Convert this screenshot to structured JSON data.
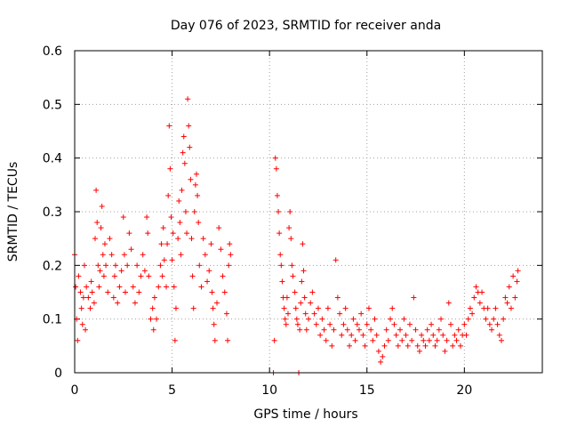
{
  "chart_data": {
    "type": "scatter",
    "title": "Day 076 of 2023, SRMTID for receiver anda",
    "xlabel": "GPS time / hours",
    "ylabel": "SRMTID / TECUs",
    "xlim": [
      0,
      24
    ],
    "ylim": [
      0,
      0.6
    ],
    "xticks": [
      0,
      5,
      10,
      15,
      20
    ],
    "xtick_labels": [
      "0",
      "5",
      "10",
      "15",
      "20"
    ],
    "yticks": [
      0,
      0.1,
      0.2,
      0.3,
      0.4,
      0.5,
      0.6
    ],
    "ytick_labels": [
      "0",
      "0.1",
      "0.2",
      "0.3",
      "0.4",
      "0.5",
      "0.6"
    ],
    "grid": true,
    "marker": "+",
    "color": "#ff0000",
    "series": [
      {
        "name": "SRMTID",
        "points": [
          [
            0.0,
            0.22
          ],
          [
            0.05,
            0.16
          ],
          [
            0.1,
            0.1
          ],
          [
            0.15,
            0.06
          ],
          [
            0.2,
            0.18
          ],
          [
            0.3,
            0.15
          ],
          [
            0.35,
            0.12
          ],
          [
            0.4,
            0.09
          ],
          [
            0.45,
            0.14
          ],
          [
            0.5,
            0.2
          ],
          [
            0.55,
            0.08
          ],
          [
            0.6,
            0.16
          ],
          [
            0.7,
            0.14
          ],
          [
            0.8,
            0.12
          ],
          [
            0.85,
            0.17
          ],
          [
            0.9,
            0.15
          ],
          [
            1.0,
            0.13
          ],
          [
            1.05,
            0.25
          ],
          [
            1.1,
            0.34
          ],
          [
            1.15,
            0.28
          ],
          [
            1.2,
            0.2
          ],
          [
            1.25,
            0.16
          ],
          [
            1.3,
            0.19
          ],
          [
            1.35,
            0.27
          ],
          [
            1.4,
            0.31
          ],
          [
            1.45,
            0.22
          ],
          [
            1.5,
            0.18
          ],
          [
            1.55,
            0.24
          ],
          [
            1.6,
            0.2
          ],
          [
            1.7,
            0.15
          ],
          [
            1.8,
            0.25
          ],
          [
            1.9,
            0.22
          ],
          [
            2.0,
            0.14
          ],
          [
            2.05,
            0.18
          ],
          [
            2.1,
            0.2
          ],
          [
            2.2,
            0.13
          ],
          [
            2.3,
            0.16
          ],
          [
            2.4,
            0.19
          ],
          [
            2.5,
            0.29
          ],
          [
            2.55,
            0.22
          ],
          [
            2.6,
            0.15
          ],
          [
            2.7,
            0.2
          ],
          [
            2.8,
            0.26
          ],
          [
            2.9,
            0.23
          ],
          [
            3.0,
            0.16
          ],
          [
            3.1,
            0.13
          ],
          [
            3.2,
            0.2
          ],
          [
            3.3,
            0.15
          ],
          [
            3.4,
            0.18
          ],
          [
            3.5,
            0.22
          ],
          [
            3.6,
            0.19
          ],
          [
            3.7,
            0.29
          ],
          [
            3.75,
            0.26
          ],
          [
            3.8,
            0.18
          ],
          [
            3.9,
            0.1
          ],
          [
            4.0,
            0.12
          ],
          [
            4.05,
            0.08
          ],
          [
            4.1,
            0.14
          ],
          [
            4.2,
            0.1
          ],
          [
            4.3,
            0.16
          ],
          [
            4.4,
            0.2
          ],
          [
            4.45,
            0.24
          ],
          [
            4.5,
            0.18
          ],
          [
            4.55,
            0.27
          ],
          [
            4.6,
            0.21
          ],
          [
            4.7,
            0.16
          ],
          [
            4.75,
            0.24
          ],
          [
            4.8,
            0.33
          ],
          [
            4.85,
            0.46
          ],
          [
            4.9,
            0.38
          ],
          [
            4.95,
            0.29
          ],
          [
            5.0,
            0.21
          ],
          [
            5.05,
            0.26
          ],
          [
            5.1,
            0.16
          ],
          [
            5.15,
            0.06
          ],
          [
            5.2,
            0.12
          ],
          [
            5.3,
            0.25
          ],
          [
            5.35,
            0.32
          ],
          [
            5.4,
            0.28
          ],
          [
            5.45,
            0.22
          ],
          [
            5.5,
            0.34
          ],
          [
            5.55,
            0.41
          ],
          [
            5.6,
            0.44
          ],
          [
            5.65,
            0.39
          ],
          [
            5.7,
            0.3
          ],
          [
            5.75,
            0.26
          ],
          [
            5.8,
            0.51
          ],
          [
            5.85,
            0.46
          ],
          [
            5.9,
            0.42
          ],
          [
            5.95,
            0.36
          ],
          [
            6.0,
            0.25
          ],
          [
            6.05,
            0.18
          ],
          [
            6.1,
            0.12
          ],
          [
            6.15,
            0.3
          ],
          [
            6.2,
            0.35
          ],
          [
            6.25,
            0.37
          ],
          [
            6.3,
            0.33
          ],
          [
            6.35,
            0.28
          ],
          [
            6.4,
            0.2
          ],
          [
            6.5,
            0.16
          ],
          [
            6.6,
            0.25
          ],
          [
            6.7,
            0.22
          ],
          [
            6.8,
            0.17
          ],
          [
            6.9,
            0.19
          ],
          [
            7.0,
            0.24
          ],
          [
            7.05,
            0.15
          ],
          [
            7.1,
            0.12
          ],
          [
            7.15,
            0.09
          ],
          [
            7.2,
            0.06
          ],
          [
            7.3,
            0.13
          ],
          [
            7.4,
            0.27
          ],
          [
            7.5,
            0.23
          ],
          [
            7.6,
            0.18
          ],
          [
            7.7,
            0.15
          ],
          [
            7.8,
            0.11
          ],
          [
            7.85,
            0.06
          ],
          [
            7.9,
            0.2
          ],
          [
            7.95,
            0.24
          ],
          [
            8.0,
            0.22
          ],
          [
            10.2,
            0.0
          ],
          [
            10.25,
            0.06
          ],
          [
            10.3,
            0.4
          ],
          [
            10.35,
            0.38
          ],
          [
            10.4,
            0.33
          ],
          [
            10.45,
            0.3
          ],
          [
            10.5,
            0.26
          ],
          [
            10.55,
            0.22
          ],
          [
            10.6,
            0.2
          ],
          [
            10.65,
            0.17
          ],
          [
            10.7,
            0.14
          ],
          [
            10.75,
            0.12
          ],
          [
            10.8,
            0.1
          ],
          [
            10.85,
            0.09
          ],
          [
            10.9,
            0.14
          ],
          [
            10.95,
            0.11
          ],
          [
            11.0,
            0.27
          ],
          [
            11.05,
            0.3
          ],
          [
            11.1,
            0.25
          ],
          [
            11.15,
            0.2
          ],
          [
            11.2,
            0.18
          ],
          [
            11.3,
            0.15
          ],
          [
            11.35,
            0.12
          ],
          [
            11.4,
            0.1
          ],
          [
            11.45,
            0.09
          ],
          [
            11.5,
            0.0
          ],
          [
            11.55,
            0.08
          ],
          [
            11.6,
            0.13
          ],
          [
            11.65,
            0.17
          ],
          [
            11.7,
            0.24
          ],
          [
            11.75,
            0.19
          ],
          [
            11.8,
            0.14
          ],
          [
            11.85,
            0.11
          ],
          [
            11.9,
            0.08
          ],
          [
            12.0,
            0.1
          ],
          [
            12.1,
            0.13
          ],
          [
            12.2,
            0.15
          ],
          [
            12.3,
            0.11
          ],
          [
            12.4,
            0.09
          ],
          [
            12.5,
            0.12
          ],
          [
            12.6,
            0.07
          ],
          [
            12.7,
            0.1
          ],
          [
            12.8,
            0.08
          ],
          [
            12.9,
            0.06
          ],
          [
            13.0,
            0.12
          ],
          [
            13.1,
            0.09
          ],
          [
            13.2,
            0.05
          ],
          [
            13.3,
            0.08
          ],
          [
            13.4,
            0.21
          ],
          [
            13.5,
            0.14
          ],
          [
            13.6,
            0.11
          ],
          [
            13.7,
            0.07
          ],
          [
            13.8,
            0.09
          ],
          [
            13.9,
            0.12
          ],
          [
            14.0,
            0.08
          ],
          [
            14.1,
            0.05
          ],
          [
            14.2,
            0.07
          ],
          [
            14.3,
            0.1
          ],
          [
            14.4,
            0.06
          ],
          [
            14.5,
            0.09
          ],
          [
            14.6,
            0.08
          ],
          [
            14.7,
            0.11
          ],
          [
            14.8,
            0.07
          ],
          [
            14.9,
            0.05
          ],
          [
            15.0,
            0.09
          ],
          [
            15.1,
            0.12
          ],
          [
            15.2,
            0.08
          ],
          [
            15.3,
            0.06
          ],
          [
            15.4,
            0.1
          ],
          [
            15.5,
            0.07
          ],
          [
            15.6,
            0.04
          ],
          [
            15.7,
            0.02
          ],
          [
            15.8,
            0.03
          ],
          [
            15.9,
            0.05
          ],
          [
            16.0,
            0.08
          ],
          [
            16.1,
            0.06
          ],
          [
            16.2,
            0.1
          ],
          [
            16.3,
            0.12
          ],
          [
            16.4,
            0.09
          ],
          [
            16.5,
            0.07
          ],
          [
            16.6,
            0.05
          ],
          [
            16.7,
            0.08
          ],
          [
            16.8,
            0.06
          ],
          [
            16.9,
            0.1
          ],
          [
            17.0,
            0.07
          ],
          [
            17.1,
            0.05
          ],
          [
            17.2,
            0.09
          ],
          [
            17.3,
            0.06
          ],
          [
            17.4,
            0.14
          ],
          [
            17.5,
            0.08
          ],
          [
            17.6,
            0.05
          ],
          [
            17.7,
            0.04
          ],
          [
            17.8,
            0.07
          ],
          [
            17.9,
            0.06
          ],
          [
            18.0,
            0.05
          ],
          [
            18.1,
            0.08
          ],
          [
            18.2,
            0.06
          ],
          [
            18.3,
            0.09
          ],
          [
            18.4,
            0.07
          ],
          [
            18.5,
            0.05
          ],
          [
            18.6,
            0.06
          ],
          [
            18.7,
            0.08
          ],
          [
            18.8,
            0.1
          ],
          [
            18.9,
            0.07
          ],
          [
            19.0,
            0.04
          ],
          [
            19.1,
            0.06
          ],
          [
            19.2,
            0.13
          ],
          [
            19.3,
            0.09
          ],
          [
            19.4,
            0.05
          ],
          [
            19.5,
            0.07
          ],
          [
            19.6,
            0.06
          ],
          [
            19.7,
            0.08
          ],
          [
            19.8,
            0.05
          ],
          [
            19.9,
            0.07
          ],
          [
            20.0,
            0.09
          ],
          [
            20.1,
            0.07
          ],
          [
            20.2,
            0.1
          ],
          [
            20.3,
            0.12
          ],
          [
            20.4,
            0.11
          ],
          [
            20.5,
            0.14
          ],
          [
            20.6,
            0.16
          ],
          [
            20.7,
            0.15
          ],
          [
            20.8,
            0.13
          ],
          [
            20.9,
            0.15
          ],
          [
            21.0,
            0.12
          ],
          [
            21.1,
            0.1
          ],
          [
            21.2,
            0.12
          ],
          [
            21.3,
            0.09
          ],
          [
            21.4,
            0.08
          ],
          [
            21.5,
            0.1
          ],
          [
            21.6,
            0.12
          ],
          [
            21.7,
            0.09
          ],
          [
            21.8,
            0.07
          ],
          [
            21.9,
            0.06
          ],
          [
            22.0,
            0.1
          ],
          [
            22.1,
            0.14
          ],
          [
            22.2,
            0.13
          ],
          [
            22.3,
            0.16
          ],
          [
            22.4,
            0.12
          ],
          [
            22.5,
            0.18
          ],
          [
            22.6,
            0.14
          ],
          [
            22.7,
            0.17
          ],
          [
            22.75,
            0.19
          ]
        ]
      }
    ]
  }
}
